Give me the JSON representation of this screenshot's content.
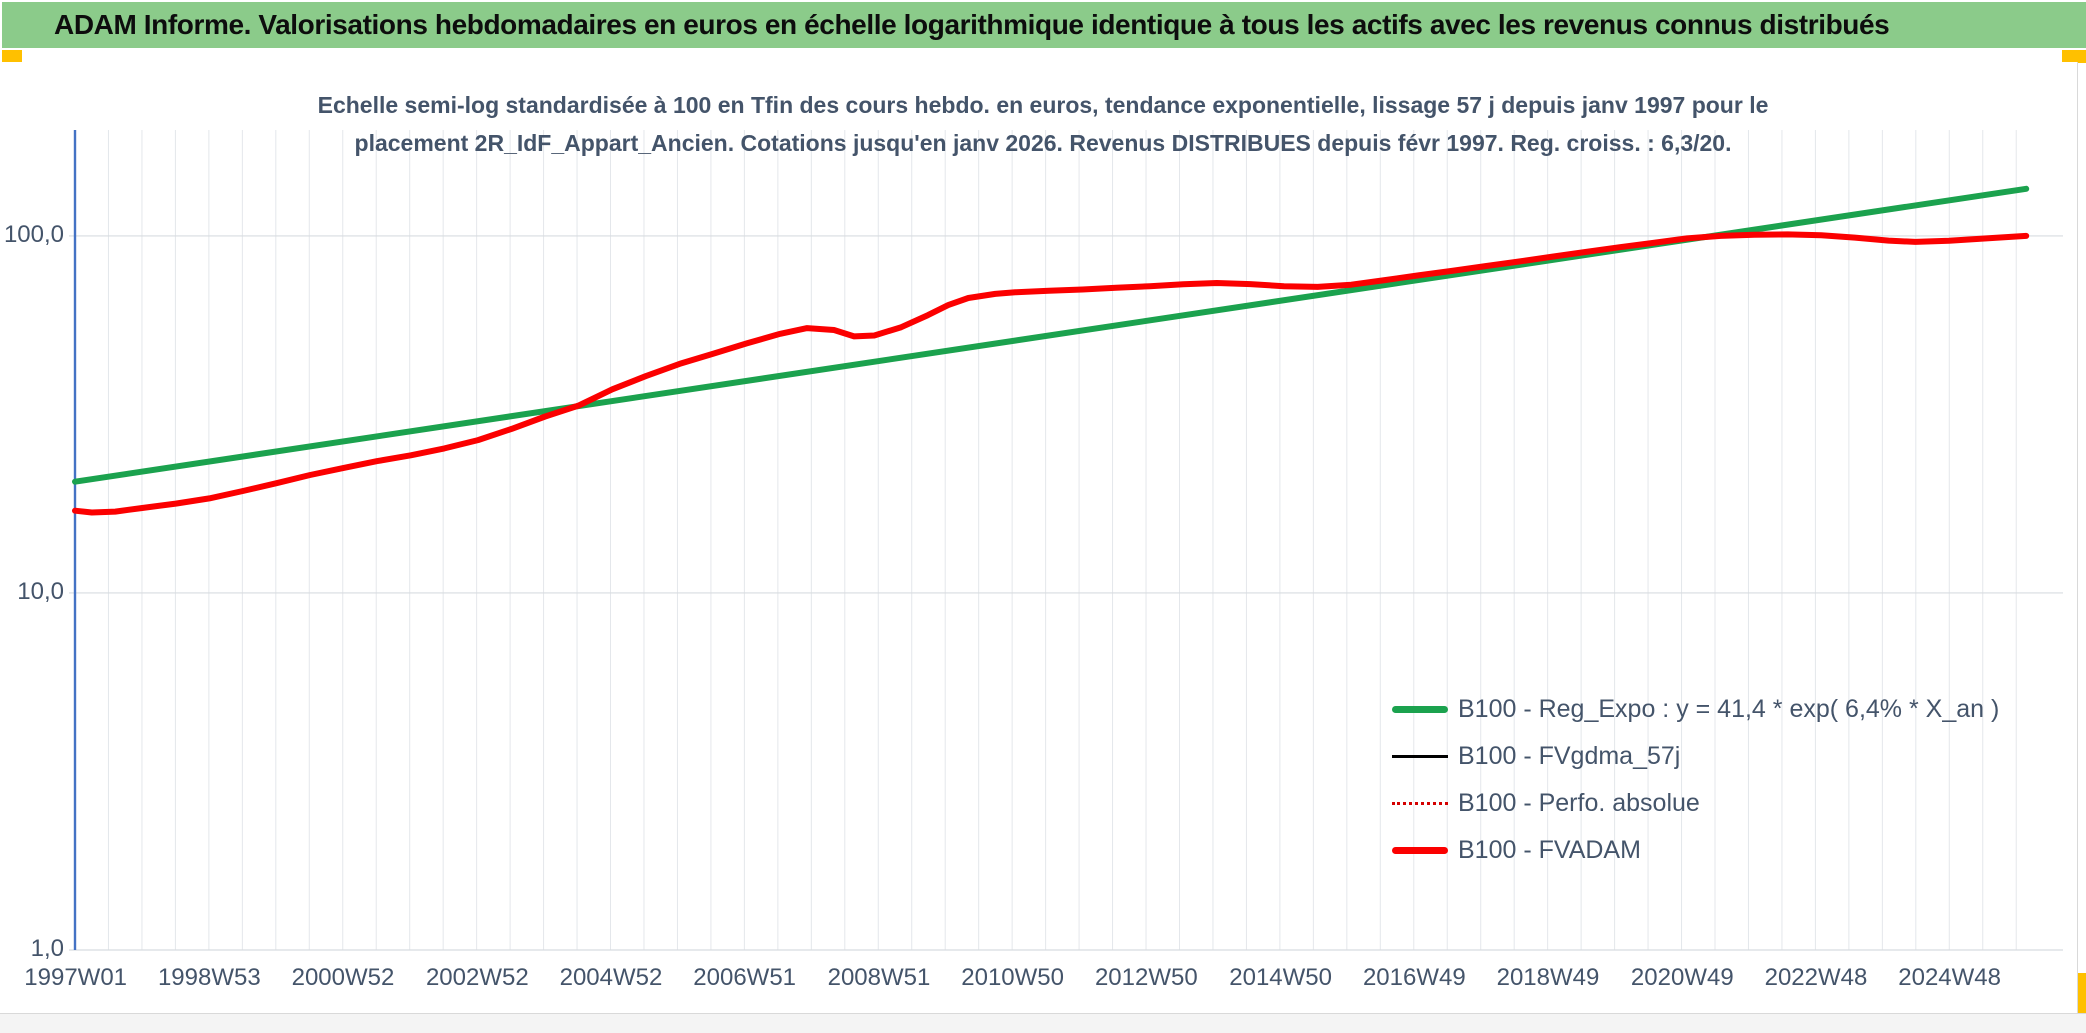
{
  "header": {
    "title": "ADAM Informe. Valorisations hebdomadaires en euros en échelle logarithmique identique à tous les actifs avec les revenus connus distribués",
    "bg_color": "#8BCB8A",
    "accent_color": "#FFC000"
  },
  "chart": {
    "subtitle_line1": "Echelle semi-log standardisée à 100 en Tfin des cours hebdo. en euros, tendance exponentielle, lissage 57 j depuis janv 1997 pour le",
    "subtitle_line2": "placement 2R_IdF_Appart_Ancien. Cotations jusqu'en janv 2026. Revenus DISTRIBUES depuis févr 1997. Reg. croiss. : 6,3/20."
  },
  "chart_data": {
    "type": "line",
    "title": "Echelle semi-log standardisée à 100 en Tfin des cours hebdo. en euros, tendance exponentielle, lissage 57 j depuis janv 1997 pour le placement 2R_IdF_Appart_Ancien. Cotations jusqu'en janv 2026. Revenus DISTRIBUES depuis févr 1997. Reg. croiss. : 6,3/20.",
    "xlabel": "",
    "ylabel": "",
    "grid": "on",
    "legend_position": "inside-right-bottom",
    "x_axis": {
      "unit": "ISO week",
      "range_years": [
        1997.0,
        2026.3
      ],
      "minor_gridline_step_years": 0.4983,
      "ticks": [
        {
          "label": "1997W01",
          "t": 1997.01
        },
        {
          "label": "1998W53",
          "t": 1999.0
        },
        {
          "label": "2000W52",
          "t": 2000.99
        },
        {
          "label": "2002W52",
          "t": 2002.99
        },
        {
          "label": "2004W52",
          "t": 2004.98
        },
        {
          "label": "2006W51",
          "t": 2006.97
        },
        {
          "label": "2008W51",
          "t": 2008.97
        },
        {
          "label": "2010W50",
          "t": 2010.96
        },
        {
          "label": "2012W50",
          "t": 2012.95
        },
        {
          "label": "2014W50",
          "t": 2014.95
        },
        {
          "label": "2016W49",
          "t": 2016.94
        },
        {
          "label": "2018W49",
          "t": 2018.93
        },
        {
          "label": "2020W49",
          "t": 2020.93
        },
        {
          "label": "2022W48",
          "t": 2022.92
        },
        {
          "label": "2024W48",
          "t": 2024.91
        }
      ]
    },
    "y_axis": {
      "scale": "log10",
      "range": [
        1.0,
        198.0
      ],
      "ticks": [
        {
          "label": "100,0",
          "value": 100.0
        },
        {
          "label": "10,0",
          "value": 10.0
        },
        {
          "label": "1,0",
          "value": 1.0
        }
      ],
      "axis_line_color": "#4472C4"
    },
    "series": [
      {
        "name": "B100 - Reg_Expo : y = 41,4 * exp( 6,4% *  X_an )",
        "color": "#1BA24E",
        "width": 6,
        "dash": null,
        "points": [
          [
            1997.0,
            20.5
          ],
          [
            2026.05,
            135.5
          ]
        ]
      },
      {
        "name": "B100 - FVgdma_57j",
        "color": "#000000",
        "width": 2.5,
        "dash": null,
        "points_from": "B100 - FVADAM"
      },
      {
        "name": "B100 - Perfo. absolue",
        "color": "#D40000",
        "width": 2,
        "dash": "2 4",
        "points_from": "B100 - FVADAM"
      },
      {
        "name": "B100 - FVADAM",
        "color": "#FB0000",
        "width": 6,
        "dash": null,
        "points": [
          [
            1997.0,
            17.0
          ],
          [
            1997.25,
            16.8
          ],
          [
            1997.6,
            16.9
          ],
          [
            1998.0,
            17.3
          ],
          [
            1998.5,
            17.8
          ],
          [
            1999.0,
            18.4
          ],
          [
            1999.5,
            19.3
          ],
          [
            2000.0,
            20.3
          ],
          [
            2000.5,
            21.4
          ],
          [
            2001.0,
            22.4
          ],
          [
            2001.5,
            23.4
          ],
          [
            2002.0,
            24.3
          ],
          [
            2002.5,
            25.4
          ],
          [
            2003.0,
            26.8
          ],
          [
            2003.5,
            28.8
          ],
          [
            2004.0,
            31.2
          ],
          [
            2004.5,
            33.5
          ],
          [
            2005.0,
            37.2
          ],
          [
            2005.5,
            40.5
          ],
          [
            2006.0,
            43.8
          ],
          [
            2006.5,
            46.8
          ],
          [
            2007.0,
            50.0
          ],
          [
            2007.5,
            53.2
          ],
          [
            2007.9,
            55.2
          ],
          [
            2008.3,
            54.5
          ],
          [
            2008.6,
            52.3
          ],
          [
            2008.9,
            52.6
          ],
          [
            2009.3,
            55.5
          ],
          [
            2009.7,
            60.0
          ],
          [
            2010.0,
            64.0
          ],
          [
            2010.3,
            67.0
          ],
          [
            2010.7,
            68.8
          ],
          [
            2011.0,
            69.5
          ],
          [
            2011.5,
            70.2
          ],
          [
            2012.0,
            70.8
          ],
          [
            2012.5,
            71.6
          ],
          [
            2013.0,
            72.3
          ],
          [
            2013.5,
            73.2
          ],
          [
            2014.0,
            73.8
          ],
          [
            2014.5,
            73.3
          ],
          [
            2015.0,
            72.3
          ],
          [
            2015.5,
            72.0
          ],
          [
            2016.0,
            73.0
          ],
          [
            2016.5,
            75.2
          ],
          [
            2017.0,
            77.5
          ],
          [
            2017.5,
            79.8
          ],
          [
            2018.0,
            82.3
          ],
          [
            2018.5,
            84.8
          ],
          [
            2019.0,
            87.5
          ],
          [
            2019.5,
            90.2
          ],
          [
            2020.0,
            93.0
          ],
          [
            2020.5,
            95.6
          ],
          [
            2021.0,
            98.4
          ],
          [
            2021.5,
            100.0
          ],
          [
            2022.0,
            100.8
          ],
          [
            2022.5,
            101.0
          ],
          [
            2023.0,
            100.4
          ],
          [
            2023.5,
            98.9
          ],
          [
            2024.0,
            97.0
          ],
          [
            2024.4,
            96.2
          ],
          [
            2024.9,
            96.9
          ],
          [
            2025.4,
            98.3
          ],
          [
            2026.05,
            100.0
          ]
        ]
      }
    ]
  }
}
